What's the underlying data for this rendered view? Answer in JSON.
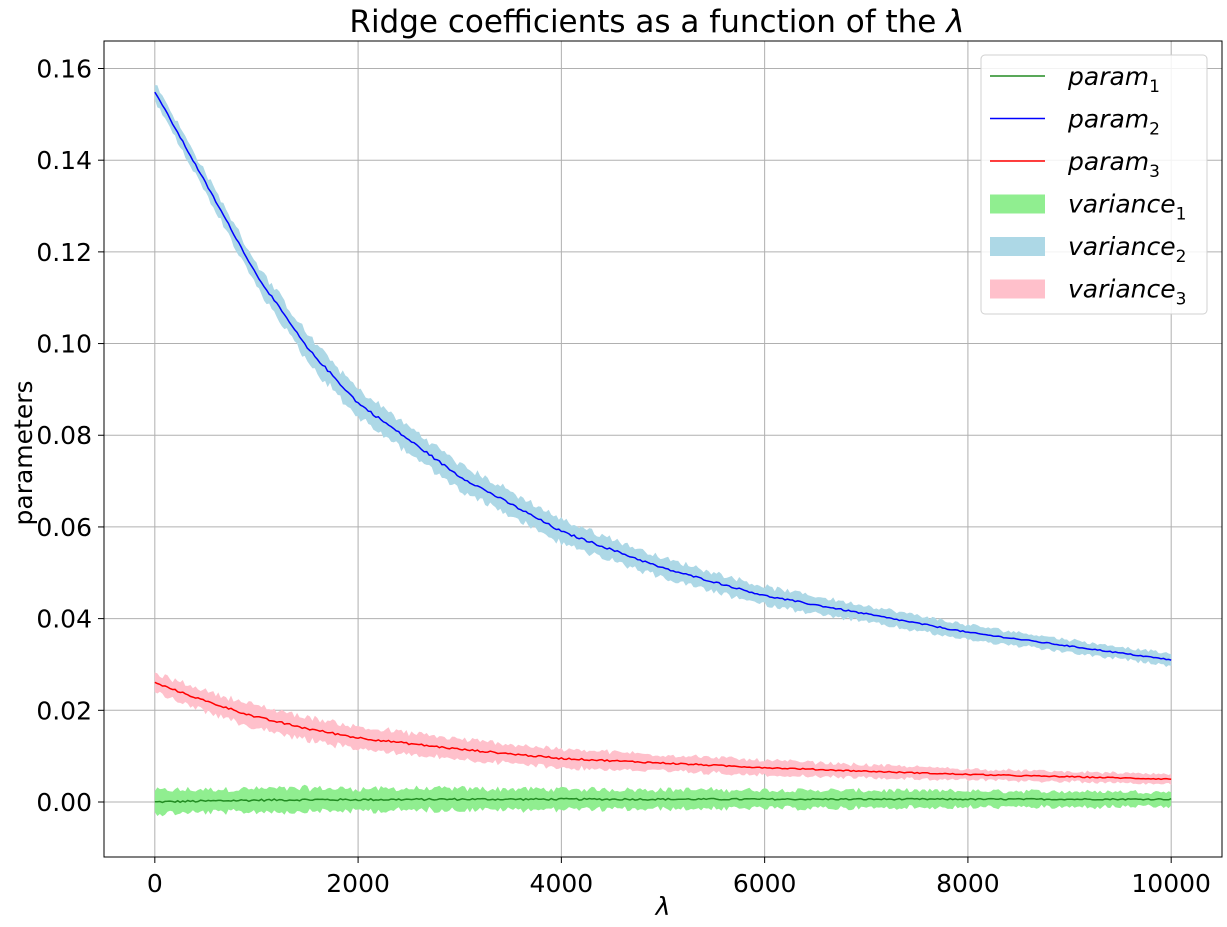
{
  "chart_data": {
    "type": "line",
    "title_prefix": "Ridge coefficients as a function of the ",
    "title_symbol": "λ",
    "xlabel": "λ",
    "ylabel": "parameters",
    "xlim": [
      -500,
      10500
    ],
    "ylim": [
      -0.012,
      0.166
    ],
    "xticks": [
      0,
      2000,
      4000,
      6000,
      8000,
      10000
    ],
    "xtick_labels": [
      "0",
      "2000",
      "4000",
      "6000",
      "8000",
      "10000"
    ],
    "yticks": [
      0.0,
      0.02,
      0.04,
      0.06,
      0.08,
      0.1,
      0.12,
      0.14,
      0.16
    ],
    "ytick_labels": [
      "0.00",
      "0.02",
      "0.04",
      "0.06",
      "0.08",
      "0.10",
      "0.12",
      "0.14",
      "0.16"
    ],
    "grid": true,
    "legend_position": "top-right",
    "series": [
      {
        "name": "param",
        "subscript": "1",
        "color": "#228B22",
        "band_name": "variance",
        "band_subscript": "1",
        "band_color": "#90EE90",
        "x": [
          0,
          500,
          1000,
          1500,
          2000,
          3000,
          4000,
          5000,
          6000,
          7000,
          8000,
          9000,
          10000
        ],
        "y": [
          0.0,
          0.0002,
          0.0004,
          0.0005,
          0.0005,
          0.0006,
          0.0006,
          0.0006,
          0.0006,
          0.0006,
          0.0006,
          0.0006,
          0.0006
        ],
        "band_halfwidth": [
          0.0025,
          0.0025,
          0.0025,
          0.0025,
          0.0024,
          0.0023,
          0.0022,
          0.0021,
          0.002,
          0.0019,
          0.0018,
          0.0017,
          0.0016
        ]
      },
      {
        "name": "param",
        "subscript": "2",
        "color": "#0000FF",
        "band_name": "variance",
        "band_subscript": "2",
        "band_color": "#ADD8E6",
        "x": [
          0,
          500,
          1000,
          1500,
          2000,
          3000,
          4000,
          5000,
          6000,
          7000,
          8000,
          9000,
          10000
        ],
        "y": [
          0.155,
          0.135,
          0.115,
          0.099,
          0.087,
          0.071,
          0.059,
          0.051,
          0.045,
          0.041,
          0.037,
          0.034,
          0.031
        ],
        "band_halfwidth": [
          0.002,
          0.0022,
          0.0025,
          0.003,
          0.003,
          0.0028,
          0.0026,
          0.0022,
          0.002,
          0.0018,
          0.0016,
          0.0014,
          0.0013
        ]
      },
      {
        "name": "param",
        "subscript": "3",
        "color": "#FF0000",
        "band_name": "variance",
        "band_subscript": "3",
        "band_color": "#FFC0CB",
        "x": [
          0,
          500,
          1000,
          1500,
          2000,
          3000,
          4000,
          5000,
          6000,
          7000,
          8000,
          9000,
          10000
        ],
        "y": [
          0.026,
          0.022,
          0.0185,
          0.016,
          0.014,
          0.0115,
          0.0095,
          0.0085,
          0.0075,
          0.0067,
          0.006,
          0.0055,
          0.005
        ],
        "band_halfwidth": [
          0.002,
          0.0023,
          0.0025,
          0.0025,
          0.0024,
          0.0022,
          0.002,
          0.0018,
          0.0016,
          0.0014,
          0.0012,
          0.0011,
          0.001
        ]
      }
    ]
  }
}
